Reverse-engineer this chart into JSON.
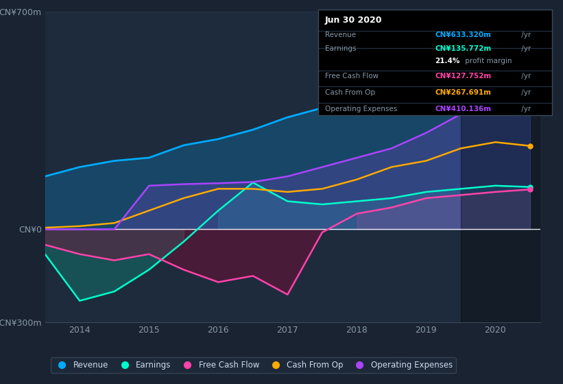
{
  "bg_color": "#1a2332",
  "chart_bg": "#1e2b3c",
  "grid_color": "#2a3a4a",
  "zero_line_color": "#ffffff",
  "title_text": "Jun 30 2020",
  "tooltip": {
    "Revenue": {
      "value": "CN¥633.320m",
      "color": "#00aaff"
    },
    "Earnings": {
      "value": "CN¥135.772m",
      "color": "#00ffcc"
    },
    "profit_margin": "21.4%",
    "Free Cash Flow": {
      "value": "CN¥127.752m",
      "color": "#ff44aa"
    },
    "Cash From Op": {
      "value": "CN¥267.691m",
      "color": "#ffaa00"
    },
    "Operating Expenses": {
      "value": "CN¥410.136m",
      "color": "#aa44ff"
    }
  },
  "years": [
    2013.5,
    2014.0,
    2014.5,
    2015.0,
    2015.5,
    2016.0,
    2016.5,
    2017.0,
    2017.5,
    2018.0,
    2018.5,
    2019.0,
    2019.5,
    2020.0,
    2020.5
  ],
  "revenue": [
    170,
    200,
    220,
    230,
    270,
    290,
    320,
    360,
    390,
    420,
    480,
    530,
    600,
    650,
    633
  ],
  "earnings": [
    -80,
    -230,
    -200,
    -130,
    -40,
    60,
    150,
    90,
    80,
    90,
    100,
    120,
    130,
    140,
    136
  ],
  "free_cash_flow": [
    -50,
    -80,
    -100,
    -80,
    -130,
    -170,
    -150,
    -210,
    -10,
    50,
    70,
    100,
    110,
    120,
    128
  ],
  "cash_from_op": [
    5,
    10,
    20,
    60,
    100,
    130,
    130,
    120,
    130,
    160,
    200,
    220,
    260,
    280,
    268
  ],
  "op_expenses": [
    0,
    0,
    0,
    140,
    145,
    148,
    152,
    170,
    200,
    230,
    260,
    310,
    370,
    400,
    410
  ],
  "revenue_color": "#00aaff",
  "earnings_color": "#00ffcc",
  "fcf_color": "#ff44aa",
  "cashop_color": "#ffaa00",
  "opex_color": "#aa44ff",
  "ylim_min": -300,
  "ylim_max": 700,
  "xtick_labels": [
    "2014",
    "2015",
    "2016",
    "2017",
    "2018",
    "2019",
    "2020"
  ],
  "xtick_positions": [
    2014,
    2015,
    2016,
    2017,
    2018,
    2019,
    2020
  ],
  "legend_labels": [
    "Revenue",
    "Earnings",
    "Free Cash Flow",
    "Cash From Op",
    "Operating Expenses"
  ],
  "legend_colors": [
    "#00aaff",
    "#00ffcc",
    "#ff44aa",
    "#ffaa00",
    "#aa44ff"
  ],
  "dark_overlay_start": 2019.5
}
